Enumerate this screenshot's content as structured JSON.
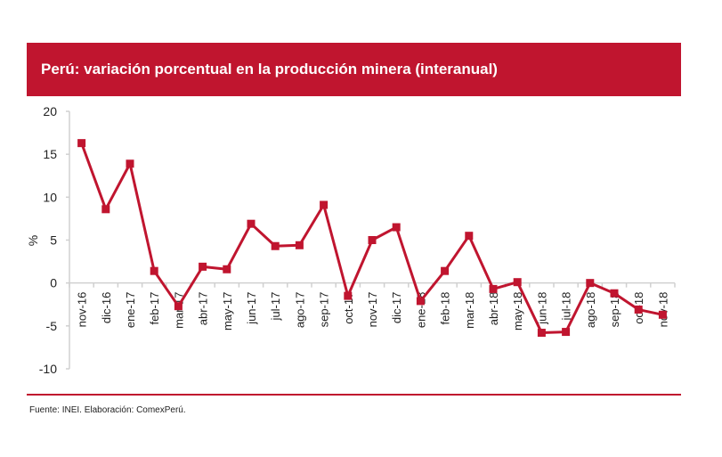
{
  "chart_data": {
    "type": "line",
    "title": "Perú: variación porcentual en la producción minera (interanual)",
    "xlabel": "",
    "ylabel": "%",
    "ylim": [
      -10,
      20
    ],
    "yticks": [
      -10,
      -5,
      0,
      5,
      10,
      15,
      20
    ],
    "grid": false,
    "legend": "none",
    "color": "#c0152f",
    "marker": "square",
    "categories": [
      "nov-16",
      "dic-16",
      "ene-17",
      "feb-17",
      "mar-17",
      "abr-17",
      "may-17",
      "jun-17",
      "jul-17",
      "ago-17",
      "sep-17",
      "oct-17",
      "nov-17",
      "dic-17",
      "ene-18",
      "feb-18",
      "mar-18",
      "abr-18",
      "may-18",
      "jun-18",
      "jul-18",
      "ago-18",
      "sep-18",
      "oct-18",
      "nov-18"
    ],
    "values": [
      16.3,
      8.6,
      13.9,
      1.4,
      -2.7,
      1.9,
      1.6,
      6.9,
      4.3,
      4.4,
      9.1,
      -1.5,
      5.0,
      6.5,
      -2.1,
      1.4,
      5.5,
      -0.7,
      0.1,
      -5.8,
      -5.7,
      0.0,
      -1.2,
      -3.1,
      -3.7
    ]
  },
  "source": "Fuente: INEI. Elaboración: ComexPerú."
}
